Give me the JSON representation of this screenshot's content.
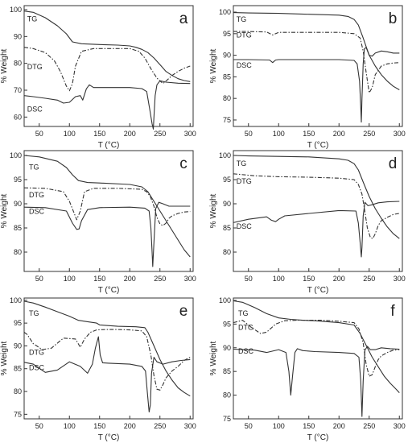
{
  "chart_data": [
    {
      "type": "line",
      "panel_letter": "a",
      "xlabel": "T (°C)",
      "ylabel": "% Weight",
      "xlim": [
        25,
        305
      ],
      "ylim": [
        56.5,
        101.5
      ],
      "xticks": [
        50,
        100,
        150,
        200,
        250,
        300
      ],
      "yticks": [
        60,
        70,
        80,
        90,
        100
      ],
      "series": [
        {
          "name": "TG",
          "style": "solid",
          "label_at": [
            30,
            96.6
          ],
          "x": [
            25,
            40,
            60,
            80,
            95,
            105,
            120,
            150,
            180,
            200,
            210,
            220,
            230,
            240,
            250,
            260,
            270,
            280,
            290,
            300
          ],
          "y": [
            99.5,
            99.0,
            97.0,
            94.0,
            91.0,
            88.0,
            87.3,
            87.0,
            86.8,
            86.5,
            86.0,
            85.2,
            84.0,
            82.0,
            79.5,
            77.0,
            75.5,
            74.3,
            73.6,
            73.2
          ]
        },
        {
          "name": "DTG",
          "style": "dashed",
          "label_at": [
            30,
            78.7
          ],
          "x": [
            25,
            40,
            60,
            75,
            85,
            95,
            100,
            105,
            110,
            120,
            140,
            170,
            200,
            215,
            225,
            235,
            245,
            255,
            262,
            270,
            280,
            290,
            300
          ],
          "y": [
            86.0,
            85.5,
            84.0,
            81.0,
            77.0,
            71.5,
            69.8,
            72.5,
            79.0,
            84.5,
            85.5,
            85.5,
            85.5,
            84.5,
            82.0,
            78.0,
            74.5,
            72.5,
            73.8,
            75.5,
            77.0,
            78.2,
            79.0
          ]
        },
        {
          "name": "DSC",
          "style": "solid",
          "label_at": [
            30,
            63.0
          ],
          "x": [
            25,
            40,
            60,
            80,
            90,
            100,
            110,
            118,
            122,
            128,
            133,
            140,
            160,
            200,
            220,
            228,
            233,
            237,
            239,
            240,
            242,
            245,
            250,
            260,
            280,
            300
          ],
          "y": [
            68.0,
            67.6,
            67.0,
            66.3,
            65.2,
            65.5,
            67.6,
            68.0,
            66.3,
            70.5,
            72.0,
            71.0,
            71.0,
            71.0,
            70.6,
            69.5,
            63.0,
            57.5,
            55.5,
            60.0,
            68.0,
            72.0,
            73.5,
            73.0,
            72.6,
            72.5
          ]
        }
      ]
    },
    {
      "type": "line",
      "panel_letter": "b",
      "xlabel": "T (°C)",
      "ylabel": "% Weight",
      "xlim": [
        25,
        305
      ],
      "ylim": [
        73.5,
        101.5
      ],
      "xticks": [
        50,
        100,
        150,
        200,
        250,
        300
      ],
      "yticks": [
        75,
        80,
        85,
        90,
        95,
        100
      ],
      "series": [
        {
          "name": "TG",
          "style": "solid",
          "label_at": [
            30,
            98.3
          ],
          "x": [
            25,
            50,
            100,
            150,
            200,
            215,
            225,
            232,
            240,
            245,
            250,
            260,
            270,
            280,
            290,
            300
          ],
          "y": [
            99.9,
            99.8,
            99.7,
            99.5,
            99.3,
            99.0,
            98.3,
            97.0,
            94.0,
            92.0,
            90.0,
            87.5,
            85.5,
            84.0,
            82.8,
            82.0
          ]
        },
        {
          "name": "DTG",
          "style": "dashed",
          "label_at": [
            30,
            94.7
          ],
          "x": [
            25,
            50,
            80,
            90,
            100,
            150,
            200,
            225,
            235,
            240,
            245,
            250,
            255,
            260,
            270,
            280,
            290,
            300
          ],
          "y": [
            95.5,
            95.5,
            95.4,
            94.7,
            95.3,
            95.3,
            95.3,
            95.0,
            94.0,
            91.0,
            86.0,
            81.3,
            82.5,
            85.5,
            87.5,
            88.0,
            88.2,
            88.3
          ]
        },
        {
          "name": "DSC",
          "style": "solid",
          "label_at": [
            30,
            87.7
          ],
          "x": [
            25,
            50,
            85,
            90,
            95,
            100,
            150,
            200,
            225,
            230,
            234,
            236,
            237,
            238,
            240,
            242,
            245,
            250,
            255,
            260,
            270,
            280,
            290,
            300
          ],
          "y": [
            89.0,
            89.0,
            88.9,
            88.3,
            88.9,
            89.0,
            89.0,
            89.0,
            88.8,
            88.0,
            84.0,
            78.0,
            74.5,
            80.0,
            88.0,
            91.5,
            91.8,
            90.0,
            89.8,
            90.5,
            91.0,
            90.8,
            90.5,
            90.5
          ]
        }
      ]
    },
    {
      "type": "line",
      "panel_letter": "c",
      "xlabel": "T (°C)",
      "ylabel": "% Weight",
      "xlim": [
        25,
        305
      ],
      "ylim": [
        76.0,
        101.0
      ],
      "xticks": [
        50,
        100,
        150,
        200,
        250,
        300
      ],
      "yticks": [
        80,
        85,
        90,
        95,
        100
      ],
      "series": [
        {
          "name": "TG",
          "style": "solid",
          "label_at": [
            33,
            97.6
          ],
          "x": [
            25,
            50,
            80,
            95,
            105,
            115,
            130,
            150,
            200,
            220,
            230,
            240,
            250,
            260,
            270,
            280,
            290,
            300
          ],
          "y": [
            100.0,
            99.7,
            98.8,
            97.5,
            96.0,
            94.8,
            94.4,
            94.3,
            94.0,
            93.5,
            92.5,
            90.5,
            88.5,
            86.5,
            84.5,
            82.5,
            80.5,
            79.0
          ]
        },
        {
          "name": "DTG",
          "style": "dashed",
          "label_at": [
            33,
            91.8
          ],
          "x": [
            25,
            60,
            90,
            100,
            108,
            112,
            118,
            125,
            140,
            180,
            220,
            228,
            234,
            240,
            245,
            250,
            255,
            260,
            265,
            270,
            280,
            290,
            300
          ],
          "y": [
            93.3,
            93.2,
            92.5,
            90.5,
            88.0,
            86.7,
            88.5,
            92.5,
            93.2,
            93.2,
            93.0,
            92.5,
            91.5,
            89.5,
            87.2,
            85.8,
            85.5,
            86.0,
            87.0,
            87.5,
            88.0,
            88.3,
            88.4
          ]
        },
        {
          "name": "DSC",
          "style": "solid",
          "label_at": [
            33,
            88.4
          ],
          "x": [
            25,
            60,
            95,
            105,
            112,
            116,
            120,
            130,
            150,
            200,
            225,
            232,
            235,
            237,
            238,
            240,
            243,
            248,
            255,
            265,
            280,
            300
          ],
          "y": [
            89.3,
            89.2,
            88.5,
            86.0,
            84.7,
            84.8,
            86.5,
            88.8,
            89.2,
            89.3,
            89.1,
            88.5,
            85.0,
            80.0,
            77.0,
            82.0,
            89.0,
            90.3,
            90.0,
            89.5,
            89.5,
            89.5
          ]
        }
      ]
    },
    {
      "type": "line",
      "panel_letter": "d",
      "xlabel": "T (°C)",
      "ylabel": "% Weight",
      "xlim": [
        25,
        305
      ],
      "ylim": [
        76.0,
        101.0
      ],
      "xticks": [
        50,
        100,
        150,
        200,
        250,
        300
      ],
      "yticks": [
        80,
        85,
        90,
        95,
        100
      ],
      "series": [
        {
          "name": "TG",
          "style": "solid",
          "label_at": [
            30,
            98.3
          ],
          "x": [
            25,
            50,
            100,
            150,
            200,
            215,
            225,
            232,
            240,
            245,
            250,
            260,
            270,
            280,
            290,
            300
          ],
          "y": [
            100.0,
            99.9,
            99.8,
            99.7,
            99.3,
            99.0,
            98.3,
            97.0,
            94.5,
            93.0,
            91.5,
            89.0,
            87.0,
            85.2,
            83.8,
            82.8
          ]
        },
        {
          "name": "DTG",
          "style": "dashed",
          "label_at": [
            30,
            94.7
          ],
          "x": [
            25,
            60,
            100,
            150,
            200,
            225,
            232,
            238,
            242,
            247,
            252,
            256,
            260,
            265,
            270,
            280,
            290,
            300
          ],
          "y": [
            96.2,
            95.8,
            95.6,
            95.5,
            95.3,
            95.0,
            94.0,
            92.0,
            89.0,
            85.0,
            83.0,
            82.8,
            83.8,
            85.5,
            86.5,
            87.2,
            87.8,
            88.0
          ]
        },
        {
          "name": "DSC",
          "style": "solid",
          "label_at": [
            30,
            85.3
          ],
          "x": [
            25,
            50,
            80,
            88,
            95,
            100,
            110,
            150,
            200,
            228,
            232,
            235,
            237,
            238,
            240,
            243,
            248,
            255,
            265,
            280,
            300
          ],
          "y": [
            86.1,
            86.8,
            87.3,
            86.6,
            86.3,
            86.8,
            87.5,
            88.0,
            88.6,
            88.5,
            86.0,
            82.0,
            79.0,
            81.0,
            87.5,
            90.3,
            89.6,
            89.8,
            90.2,
            90.4,
            90.5
          ]
        }
      ]
    },
    {
      "type": "line",
      "panel_letter": "e",
      "xlabel": "T (°C)",
      "ylabel": "% Weight",
      "xlim": [
        25,
        305
      ],
      "ylim": [
        74.0,
        100.5
      ],
      "xticks": [
        50,
        100,
        150,
        200,
        250,
        300
      ],
      "yticks": [
        75,
        80,
        85,
        90,
        95,
        100
      ],
      "series": [
        {
          "name": "TG",
          "style": "solid",
          "label_at": [
            33,
            97.1
          ],
          "x": [
            25,
            40,
            60,
            80,
            100,
            115,
            130,
            145,
            150,
            180,
            210,
            225,
            230,
            240,
            250,
            260,
            270,
            280,
            290,
            300
          ],
          "y": [
            99.8,
            99.4,
            98.5,
            97.5,
            96.5,
            95.6,
            95.3,
            95.0,
            94.6,
            94.3,
            94.2,
            94.0,
            93.0,
            90.0,
            87.0,
            84.5,
            82.5,
            80.8,
            79.8,
            79.0
          ]
        },
        {
          "name": "DTG",
          "style": "dashed",
          "label_at": [
            33,
            88.6
          ],
          "x": [
            25,
            30,
            40,
            55,
            70,
            90,
            110,
            118,
            125,
            135,
            145,
            160,
            180,
            200,
            220,
            228,
            235,
            240,
            245,
            250,
            255,
            260,
            270,
            280,
            290,
            300
          ],
          "y": [
            93.0,
            92.5,
            90.5,
            89.2,
            89.5,
            91.7,
            91.5,
            89.7,
            91.5,
            93.0,
            93.5,
            93.6,
            93.6,
            93.5,
            93.3,
            92.0,
            88.0,
            83.5,
            80.5,
            80.3,
            81.5,
            83.0,
            84.5,
            85.5,
            86.8,
            87.5
          ]
        },
        {
          "name": "DSC",
          "style": "solid",
          "label_at": [
            33,
            85.2
          ],
          "x": [
            25,
            40,
            60,
            80,
            100,
            118,
            130,
            138,
            143,
            148,
            151,
            155,
            165,
            200,
            220,
            226,
            229,
            232,
            234,
            236,
            240,
            245,
            255,
            270,
            285,
            300
          ],
          "y": [
            86.4,
            86.0,
            84.2,
            84.7,
            86.5,
            85.5,
            84.0,
            86.0,
            89.5,
            92.0,
            88.0,
            86.3,
            86.2,
            86.0,
            85.5,
            84.5,
            80.0,
            75.5,
            77.0,
            84.0,
            87.5,
            86.5,
            86.0,
            86.5,
            86.8,
            87.0
          ]
        }
      ]
    },
    {
      "type": "line",
      "panel_letter": "f",
      "xlabel": "T (°C)",
      "ylabel": "% Weight",
      "xlim": [
        25,
        305
      ],
      "ylim": [
        75.0,
        100.5
      ],
      "xticks": [
        50,
        100,
        150,
        200,
        250,
        300
      ],
      "yticks": [
        75,
        80,
        85,
        90,
        95,
        100
      ],
      "series": [
        {
          "name": "TG",
          "style": "solid",
          "label_at": [
            33,
            97.3
          ],
          "x": [
            25,
            40,
            60,
            80,
            100,
            120,
            140,
            160,
            200,
            225,
            235,
            245,
            255,
            265,
            275,
            285,
            295,
            300
          ],
          "y": [
            99.9,
            99.6,
            98.5,
            97.2,
            96.3,
            96.0,
            95.8,
            95.7,
            95.3,
            94.8,
            93.0,
            90.5,
            88.0,
            86.0,
            84.0,
            82.5,
            81.2,
            80.5
          ]
        },
        {
          "name": "DTG",
          "style": "dashed",
          "label_at": [
            33,
            94.3
          ],
          "x": [
            25,
            40,
            55,
            70,
            80,
            95,
            110,
            130,
            170,
            200,
            225,
            233,
            240,
            245,
            250,
            255,
            260,
            265,
            270,
            280,
            290,
            300
          ],
          "y": [
            95.3,
            95.8,
            94.3,
            93.0,
            93.3,
            95.0,
            95.7,
            95.8,
            95.8,
            95.6,
            95.3,
            94.0,
            91.0,
            86.5,
            84.0,
            84.3,
            86.0,
            87.5,
            88.3,
            89.0,
            89.5,
            89.6
          ]
        },
        {
          "name": "DSC",
          "style": "solid",
          "label_at": [
            33,
            89.3
          ],
          "x": [
            25,
            40,
            60,
            80,
            100,
            112,
            117,
            120,
            123,
            127,
            131,
            140,
            160,
            200,
            225,
            233,
            236,
            238,
            240,
            243,
            247,
            252,
            260,
            270,
            285,
            300
          ],
          "y": [
            89.7,
            89.6,
            89.5,
            89.0,
            89.6,
            89.0,
            85.0,
            80.0,
            84.0,
            89.0,
            89.8,
            89.4,
            89.2,
            89.0,
            88.8,
            88.0,
            83.0,
            75.5,
            83.0,
            89.5,
            90.3,
            89.6,
            89.6,
            90.0,
            89.8,
            89.7
          ]
        }
      ]
    }
  ]
}
